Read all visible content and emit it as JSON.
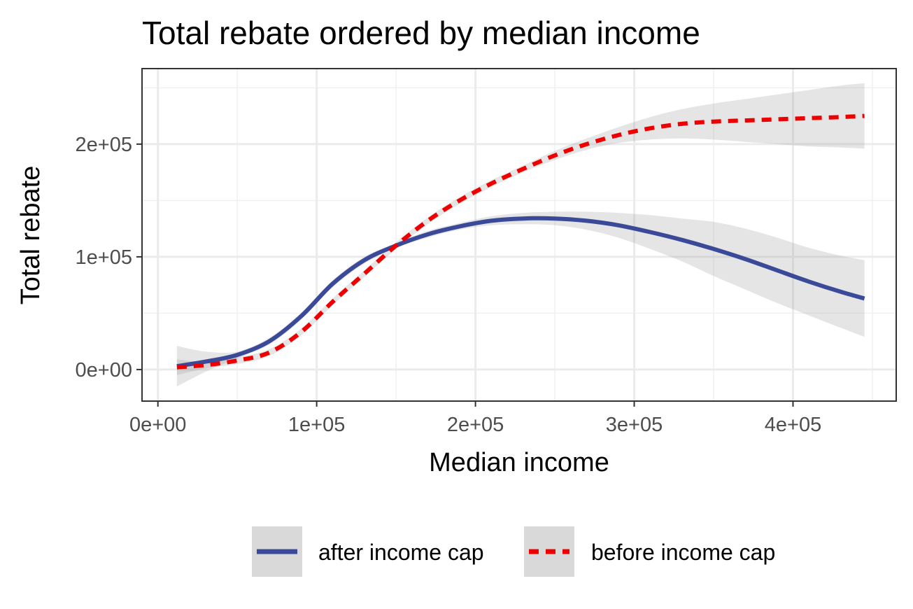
{
  "chart_data": {
    "type": "line",
    "title": "Total rebate ordered by median income",
    "xlabel": "Median income",
    "ylabel": "Total rebate",
    "xlim": [
      -10000,
      465000
    ],
    "ylim": [
      -28000,
      267000
    ],
    "x_ticks": [
      0,
      100000,
      200000,
      300000,
      400000
    ],
    "x_tick_labels": [
      "0e+00",
      "1e+05",
      "2e+05",
      "3e+05",
      "4e+05"
    ],
    "y_ticks": [
      0,
      100000,
      200000
    ],
    "y_tick_labels": [
      "0e+00",
      "1e+05",
      "2e+05"
    ],
    "grid": true,
    "legend_position": "bottom",
    "x": [
      12000,
      30000,
      50000,
      70000,
      90000,
      110000,
      130000,
      150000,
      170000,
      190000,
      210000,
      230000,
      250000,
      270000,
      290000,
      310000,
      330000,
      350000,
      370000,
      390000,
      410000,
      430000,
      445000
    ],
    "series": [
      {
        "name": "after income cap",
        "color": "#3b4a98",
        "dash": "solid",
        "values": [
          3000,
          7000,
          13000,
          25000,
          47000,
          76000,
          97000,
          110000,
          120000,
          127000,
          132000,
          134000,
          134000,
          132000,
          128000,
          122000,
          115000,
          107000,
          98000,
          88000,
          78000,
          69000,
          63000
        ],
        "ci_lower": [
          -15000,
          -2000,
          10000,
          22000,
          44000,
          73000,
          94000,
          108000,
          117000,
          124000,
          128000,
          129000,
          128000,
          124000,
          117000,
          107000,
          96000,
          83000,
          71000,
          59000,
          48000,
          37000,
          29000
        ],
        "ci_upper": [
          21000,
          16000,
          16000,
          28000,
          50000,
          79000,
          100000,
          112000,
          123000,
          130000,
          136000,
          139000,
          140000,
          140000,
          139000,
          137000,
          134000,
          131000,
          125000,
          117000,
          108000,
          101000,
          97000
        ]
      },
      {
        "name": "before income cap",
        "color": "#ee0000",
        "dash": "dashed",
        "values": [
          2000,
          4000,
          8000,
          15000,
          33000,
          60000,
          85000,
          110000,
          132000,
          150000,
          165000,
          178000,
          190000,
          200000,
          208000,
          214000,
          218000,
          220000,
          221000,
          222000,
          223000,
          224000,
          225000
        ],
        "ci_lower": [
          -5000,
          1000,
          5000,
          12000,
          30000,
          57000,
          82000,
          107000,
          129000,
          147000,
          162000,
          175000,
          186000,
          195000,
          201000,
          204000,
          205000,
          204000,
          202000,
          200000,
          198000,
          197000,
          196000
        ],
        "ci_upper": [
          9000,
          7000,
          11000,
          18000,
          36000,
          63000,
          88000,
          113000,
          135000,
          153000,
          168000,
          181000,
          194000,
          205000,
          215000,
          224000,
          231000,
          236000,
          240000,
          244000,
          248000,
          252000,
          254000
        ]
      }
    ]
  },
  "legend": {
    "items": [
      {
        "label": "after income cap"
      },
      {
        "label": "before income cap"
      }
    ]
  }
}
